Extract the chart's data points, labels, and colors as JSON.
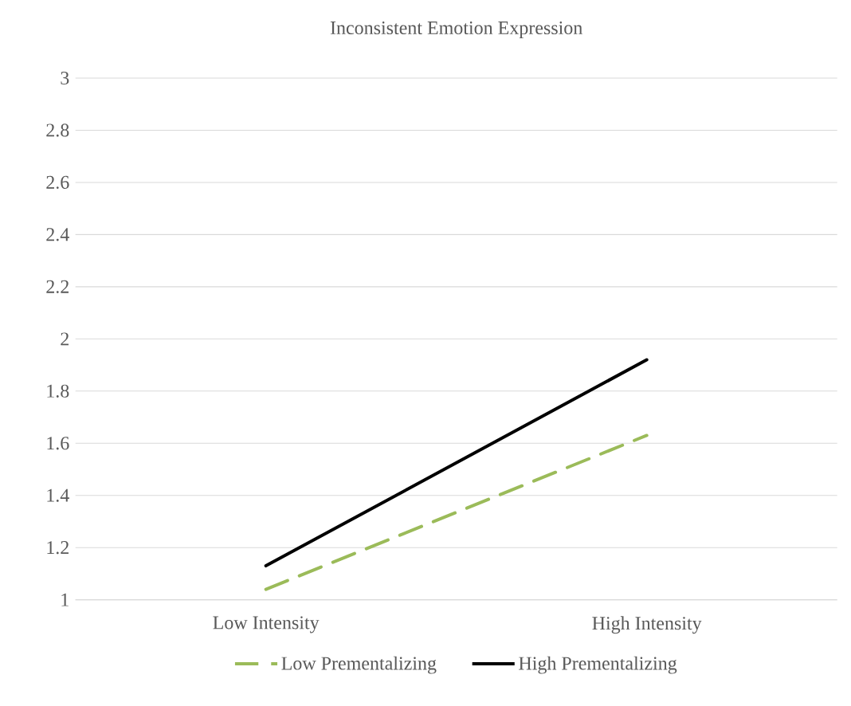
{
  "chart_data": {
    "type": "line",
    "title": "Inconsistent Emotion Expression",
    "categories": [
      "Low Intensity",
      "High Intensity"
    ],
    "series": [
      {
        "name": "Low Prementalizing",
        "color": "#9bbb59",
        "values": [
          1.04,
          1.63
        ],
        "line_style": "dashed"
      },
      {
        "name": "High Prementalizing",
        "color": "#000000",
        "values": [
          1.13,
          1.92
        ],
        "line_style": "solid"
      }
    ],
    "ylim": [
      1,
      3
    ],
    "yticks": [
      1,
      1.2,
      1.4,
      1.6,
      1.8,
      2,
      2.2,
      2.4,
      2.6,
      2.8,
      3
    ],
    "grid": "y",
    "legend": "bottom",
    "marker": "none"
  }
}
